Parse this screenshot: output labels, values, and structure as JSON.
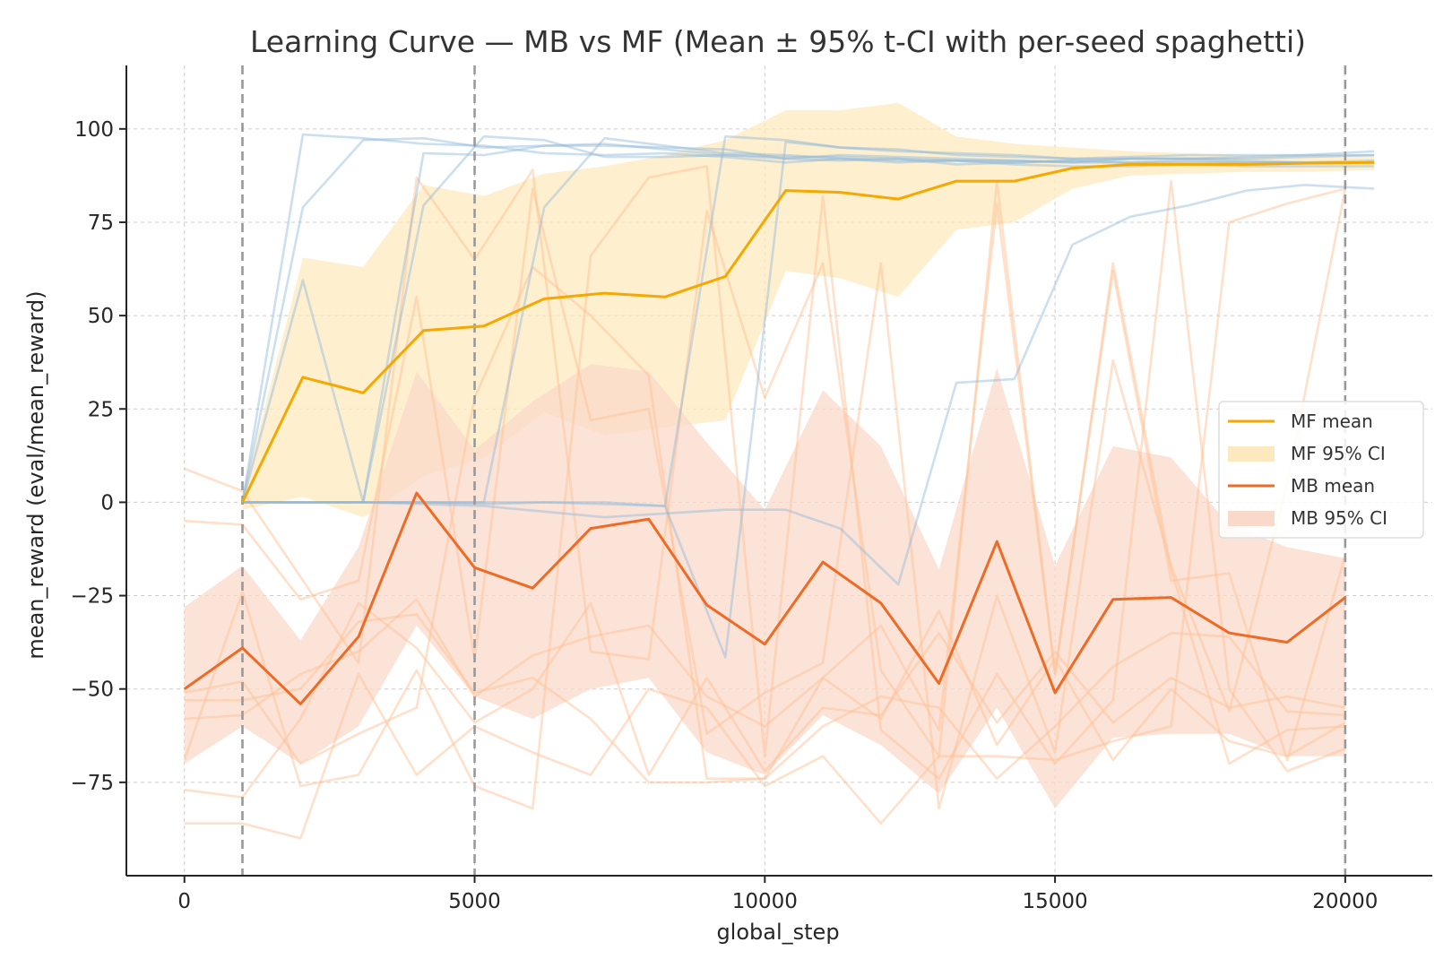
{
  "chart_data": {
    "type": "line",
    "title": "Learning Curve — MB vs MF (Mean ± 95% t-CI with per-seed spaghetti)",
    "xlabel": "global_step",
    "ylabel": "mean_reward (eval/mean_reward)",
    "xlim": [
      -1000,
      21500
    ],
    "ylim": [
      -100,
      117
    ],
    "xticks": [
      0,
      5000,
      10000,
      15000,
      20000
    ],
    "xtick_labels": [
      "0",
      "5000",
      "10000",
      "15000",
      "20000"
    ],
    "yticks": [
      -75,
      -50,
      -25,
      0,
      25,
      50,
      75,
      100
    ],
    "ytick_labels": [
      "−75",
      "−50",
      "−25",
      "0",
      "25",
      "50",
      "75",
      "100"
    ],
    "grid": true,
    "legend_position": "center-right",
    "vlines": [
      1000,
      5000,
      20000
    ],
    "colors": {
      "mf_mean": "#f5a800",
      "mf_ci": "#fde9bf",
      "mb_mean": "#ee6a25",
      "mb_ci": "#f9d9c9",
      "mf_seed": "#8fb8db",
      "mb_seed": "#ffc196",
      "vline": "#999999",
      "grid": "#cccccc"
    },
    "series": [
      {
        "name": "MF mean",
        "role": "mean",
        "x": [
          1000,
          2040,
          3080,
          4120,
          5160,
          6200,
          7240,
          8280,
          9320,
          10360,
          11300,
          12300,
          13300,
          14300,
          15300,
          16300,
          17300,
          18300,
          19300,
          20500
        ],
        "y": [
          0,
          33.5,
          29.3,
          46,
          47.2,
          54.5,
          56,
          55,
          60.5,
          83.5,
          83,
          81.2,
          86,
          86,
          89.5,
          90.5,
          90.5,
          90.5,
          90.8,
          91
        ]
      },
      {
        "name": "MF 95% CI",
        "role": "band",
        "x": [
          1000,
          2040,
          3080,
          4120,
          5160,
          6200,
          7240,
          8280,
          9320,
          10360,
          11300,
          12300,
          13300,
          14300,
          15300,
          16300,
          17300,
          18300,
          19300,
          20500
        ],
        "upper": [
          2,
          65.5,
          63,
          85,
          82,
          88,
          90,
          93,
          97,
          105,
          105,
          107,
          98,
          96,
          95,
          94,
          93.5,
          93,
          93,
          93
        ],
        "lower": [
          -2,
          1.5,
          -4,
          7,
          12,
          24,
          18,
          20,
          22,
          62,
          60,
          55,
          73,
          75,
          84,
          87.5,
          88,
          88.5,
          88.5,
          89
        ]
      },
      {
        "name": "MB mean",
        "role": "mean",
        "x": [
          0,
          1000,
          2000,
          3000,
          4000,
          5000,
          6000,
          7000,
          8000,
          9000,
          10000,
          11000,
          12000,
          13000,
          14000,
          15000,
          16000,
          17000,
          18000,
          19000,
          20000
        ],
        "y": [
          -50,
          -39,
          -54,
          -36,
          2.5,
          -17.5,
          -23,
          -7,
          -4.5,
          -27.5,
          -38,
          -16,
          -27,
          -48.5,
          -10.5,
          -51,
          -26,
          -25.5,
          -35,
          -37.5,
          -25.5
        ]
      },
      {
        "name": "MB 95% CI",
        "role": "band",
        "x": [
          0,
          1000,
          2000,
          3000,
          4000,
          5000,
          6000,
          7000,
          8000,
          9000,
          10000,
          11000,
          12000,
          13000,
          14000,
          15000,
          16000,
          17000,
          18000,
          19000,
          20000
        ],
        "upper": [
          -28,
          -17,
          -37,
          -12,
          35,
          14,
          27,
          37,
          35,
          16,
          -2,
          30,
          15,
          -18,
          36,
          -17,
          15,
          12,
          -6,
          -12,
          -15
        ],
        "lower": [
          -70,
          -60,
          -70,
          -60,
          -33,
          -52,
          -58,
          -50,
          -47,
          -67,
          -73,
          -57,
          -65,
          -78,
          -55,
          -82,
          -63,
          -62,
          -62,
          -68,
          -68
        ]
      }
    ],
    "seed_lines_mf": [
      {
        "x": [
          0,
          1000,
          2040,
          3080,
          4120,
          5160,
          6200,
          7240,
          8280,
          9320,
          10360,
          11300,
          12300,
          13300,
          14300,
          15300,
          16300,
          17300,
          18300,
          19300,
          20500
        ],
        "y": [
          null,
          0,
          98.5,
          97.5,
          96,
          95.5,
          93.5,
          93,
          93.5,
          92.5,
          91,
          92,
          91,
          91.5,
          91.5,
          91,
          92,
          92,
          92,
          92.5,
          93
        ]
      },
      {
        "x": [
          1000,
          2040,
          3080,
          4120,
          5160,
          6200,
          7240,
          8280,
          9320,
          10360,
          11300,
          12300,
          13300,
          14300,
          15300,
          16300,
          17300,
          18300,
          19300,
          20500
        ],
        "y": [
          0,
          79,
          97,
          97.5,
          95,
          95.5,
          96,
          94.5,
          93,
          92,
          93,
          92.5,
          92,
          91.5,
          91,
          91,
          91.5,
          91,
          91,
          91.5
        ]
      },
      {
        "x": [
          1000,
          2040,
          3080,
          4120,
          5160,
          6200,
          7240,
          8280,
          9320,
          10360,
          11300,
          12300,
          13300,
          14300,
          15300,
          16300,
          17300,
          18300,
          19300,
          20500
        ],
        "y": [
          0,
          59.5,
          0,
          79.5,
          98,
          97,
          92.5,
          92.5,
          93,
          92.5,
          92.5,
          92,
          91.5,
          91,
          91.5,
          91,
          91,
          91,
          91,
          91
        ]
      },
      {
        "x": [
          1000,
          2040,
          3080,
          4120,
          5160,
          6200,
          7240,
          8280,
          9320,
          10360,
          11300,
          12300,
          13300,
          14300,
          15300,
          16300,
          17300,
          18300,
          19300,
          20500
        ],
        "y": [
          0,
          0,
          0,
          93.5,
          93,
          95.5,
          95.5,
          95,
          94.5,
          92,
          91.5,
          92,
          90.5,
          91,
          91.5,
          92,
          92,
          92.5,
          93,
          94
        ]
      },
      {
        "x": [
          1000,
          2040,
          3080,
          4120,
          5160,
          6200,
          7240,
          8280,
          9320,
          10360,
          11300,
          12300,
          13300,
          14300,
          15300,
          16300,
          17300,
          18300,
          19300,
          20500
        ],
        "y": [
          0,
          0,
          0,
          0,
          0,
          79,
          97.5,
          95.5,
          93.5,
          93,
          92,
          91.5,
          91.5,
          90.5,
          90,
          90,
          90.5,
          90,
          90,
          90
        ]
      },
      {
        "x": [
          1000,
          2040,
          3080,
          4120,
          5160,
          6200,
          7240,
          8280,
          9320,
          10360,
          11300,
          12300,
          13300,
          14300,
          15300,
          16300,
          17300,
          18300,
          19300,
          20500
        ],
        "y": [
          0,
          0,
          0,
          0,
          -0.5,
          0,
          0,
          -1,
          98,
          97,
          95,
          94.5,
          93,
          92.5,
          92,
          92.5,
          93,
          93,
          93,
          93
        ]
      },
      {
        "x": [
          1000,
          2040,
          3080,
          4120,
          5160,
          6200,
          7240,
          8280,
          9320,
          10360,
          11300,
          12300,
          13300,
          14300,
          15300,
          16300,
          17300,
          18300,
          19300,
          20500
        ],
        "y": [
          0,
          0,
          0,
          0,
          0,
          0,
          -0.5,
          -1,
          -41.5,
          96.5,
          95,
          94,
          93.5,
          93,
          92,
          92,
          92,
          91.5,
          91,
          91
        ]
      },
      {
        "x": [
          1000,
          2040,
          3080,
          4120,
          5160,
          6200,
          7240,
          8280,
          9320,
          10360,
          11300,
          12300,
          13300,
          14300,
          15300,
          16300,
          17300,
          18300,
          19300,
          20500
        ],
        "y": [
          0,
          0,
          0,
          -0.5,
          -1,
          -2.5,
          -4,
          -3,
          -2,
          -2,
          -7,
          -22,
          32,
          33,
          69,
          76.5,
          79.5,
          83.5,
          85,
          84
        ]
      }
    ],
    "seed_lines_mb": [
      {
        "x": [
          0,
          1000,
          2000,
          3000,
          4000,
          5000,
          6000,
          7000,
          8000,
          9000,
          10000,
          11000,
          12000,
          13000,
          14000,
          15000,
          16000,
          17000,
          18000,
          19000,
          20000
        ],
        "y": [
          9,
          3,
          -20,
          -43,
          87,
          65,
          89,
          -40,
          -42,
          78,
          28,
          64,
          -45,
          -68,
          86,
          -46,
          62,
          -21,
          -19,
          -69,
          -14
        ]
      },
      {
        "x": [
          0,
          1000,
          2000,
          3000,
          4000,
          5000,
          6000,
          7000,
          8000,
          9000,
          10000,
          11000,
          12000,
          13000,
          14000,
          15000,
          16000,
          17000,
          18000,
          19000,
          20000
        ],
        "y": [
          -5,
          -6,
          -26,
          -21,
          55,
          -42,
          84,
          22,
          25,
          -62,
          -51,
          -43,
          64,
          -82,
          -25,
          -67,
          38,
          -17,
          -56,
          5,
          84
        ]
      },
      {
        "x": [
          0,
          1000,
          2000,
          3000,
          4000,
          5000,
          6000,
          7000,
          8000,
          9000,
          10000,
          11000,
          12000,
          13000,
          14000,
          15000,
          16000,
          17000,
          18000,
          19000,
          20000
        ],
        "y": [
          -51,
          -48,
          -70,
          -62,
          -55,
          28,
          63,
          50,
          34,
          -74,
          -74,
          -47,
          -33,
          -61,
          80,
          -46,
          64,
          -18,
          -70,
          -61,
          -60
        ]
      },
      {
        "x": [
          0,
          1000,
          2000,
          3000,
          4000,
          5000,
          6000,
          7000,
          8000,
          9000,
          10000,
          11000,
          12000,
          13000,
          14000,
          15000,
          16000,
          17000,
          18000,
          19000,
          20000
        ],
        "y": [
          -58,
          -57,
          -46,
          -40,
          -26,
          -52,
          -41,
          -36,
          -33,
          -52,
          -60,
          -47,
          -58,
          -29,
          -65,
          -42,
          -69,
          -50,
          -64,
          -68,
          -59
        ]
      },
      {
        "x": [
          0,
          1000,
          2000,
          3000,
          4000,
          5000,
          6000,
          7000,
          8000,
          9000,
          10000,
          11000,
          12000,
          13000,
          14000,
          15000,
          16000,
          17000,
          18000,
          19000,
          20000
        ],
        "y": [
          -77,
          -79,
          -58,
          -27,
          -39,
          -59,
          -50,
          -27,
          -73,
          -47,
          -72,
          -55,
          -57,
          -35,
          -59,
          -40,
          -59,
          -47,
          -55,
          -52,
          -55
        ]
      },
      {
        "x": [
          0,
          1000,
          2000,
          3000,
          4000,
          5000,
          6000,
          7000,
          8000,
          9000,
          10000,
          11000,
          12000,
          13000,
          14000,
          15000,
          16000,
          17000,
          18000,
          19000,
          20000
        ],
        "y": [
          -86,
          -86,
          -90,
          -46,
          -73,
          -60,
          -67,
          -73,
          -50,
          -55,
          -76,
          -68,
          -86,
          -68,
          -68,
          -69,
          -64,
          -60,
          75,
          80,
          84
        ]
      },
      {
        "x": [
          0,
          1000,
          2000,
          3000,
          4000,
          5000,
          6000,
          7000,
          8000,
          9000,
          10000,
          11000,
          12000,
          13000,
          14000,
          15000,
          16000,
          17000,
          18000,
          19000,
          20000
        ],
        "y": [
          -69,
          -24,
          -76,
          -73,
          -45,
          -76,
          -82,
          66,
          87,
          90,
          -68,
          82,
          -61,
          -74,
          -46,
          -70,
          -53,
          86,
          -50,
          -72,
          -66
        ]
      },
      {
        "x": [
          0,
          1000,
          2000,
          3000,
          4000,
          5000,
          6000,
          7000,
          8000,
          9000,
          10000,
          11000,
          12000,
          13000,
          14000,
          15000,
          16000,
          17000,
          18000,
          19000,
          20000
        ],
        "y": [
          -53,
          -53,
          -50,
          -32,
          -30,
          -51,
          -47,
          -58,
          -75,
          -75,
          -74,
          -60,
          -52,
          -55,
          -74,
          -60,
          -44,
          -35,
          -36,
          -56,
          -57
        ]
      }
    ]
  },
  "legend": {
    "items": [
      {
        "label": "MF mean",
        "kind": "line",
        "color": "#f5a800"
      },
      {
        "label": "MF 95% CI",
        "kind": "patch",
        "color": "#fde9bf"
      },
      {
        "label": "MB mean",
        "kind": "line",
        "color": "#ee6a25"
      },
      {
        "label": "MB 95% CI",
        "kind": "patch",
        "color": "#f9d9c9"
      }
    ]
  }
}
